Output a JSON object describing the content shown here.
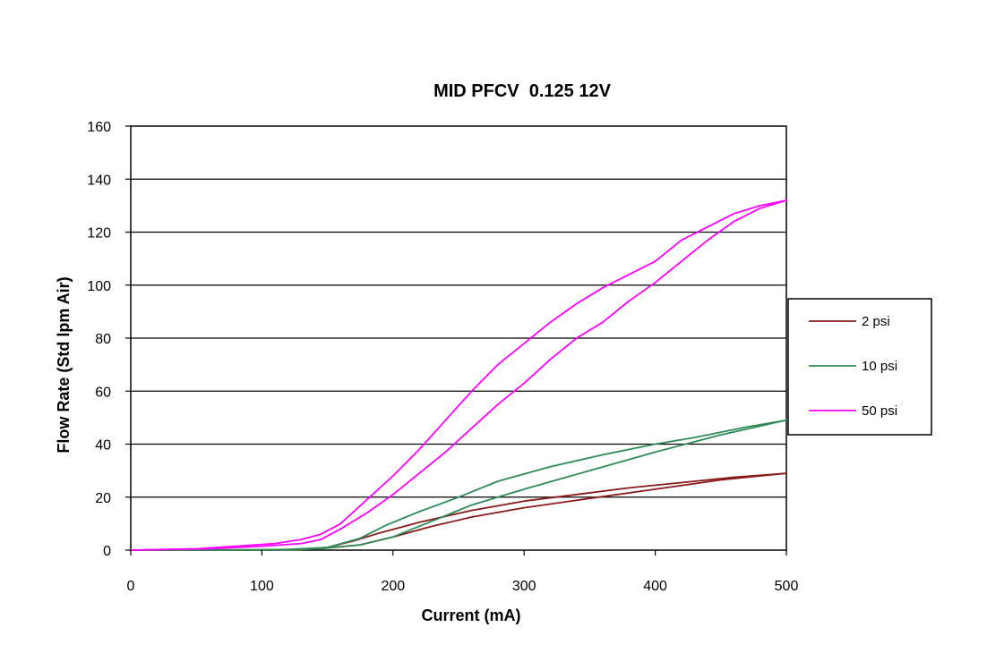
{
  "chart_data": {
    "type": "line",
    "title": "MID PFCV  0.125 12V",
    "xlabel": "Current (mA)",
    "ylabel": "Flow Rate (Std lpm Air)",
    "xlim": [
      0,
      500
    ],
    "ylim": [
      0,
      160
    ],
    "xticks": [
      0,
      100,
      200,
      300,
      400,
      500
    ],
    "yticks": [
      0,
      20,
      40,
      60,
      80,
      100,
      120,
      140,
      160
    ],
    "grid": "horizontal",
    "legend_position": "right",
    "series": [
      {
        "name": "2 psi",
        "color": "#8b1a1a",
        "up": [
          [
            0,
            0
          ],
          [
            100,
            0
          ],
          [
            130,
            0.2
          ],
          [
            150,
            0.8
          ],
          [
            175,
            2
          ],
          [
            200,
            5
          ],
          [
            230,
            9
          ],
          [
            260,
            12.5
          ],
          [
            300,
            16
          ],
          [
            350,
            19.5
          ],
          [
            400,
            23
          ],
          [
            450,
            26.5
          ],
          [
            500,
            29
          ]
        ],
        "down": [
          [
            500,
            29
          ],
          [
            460,
            27.5
          ],
          [
            420,
            25.5
          ],
          [
            380,
            23.5
          ],
          [
            340,
            21
          ],
          [
            300,
            18.5
          ],
          [
            260,
            15
          ],
          [
            220,
            10.5
          ],
          [
            190,
            6.5
          ],
          [
            170,
            3.5
          ],
          [
            150,
            1
          ],
          [
            130,
            0.3
          ],
          [
            100,
            0.1
          ],
          [
            0,
            0
          ]
        ]
      },
      {
        "name": "10 psi",
        "color": "#2e8b57",
        "up": [
          [
            0,
            0
          ],
          [
            100,
            0
          ],
          [
            130,
            0.2
          ],
          [
            150,
            0.8
          ],
          [
            175,
            2
          ],
          [
            200,
            5
          ],
          [
            230,
            11
          ],
          [
            260,
            17
          ],
          [
            300,
            23
          ],
          [
            350,
            30
          ],
          [
            400,
            37
          ],
          [
            450,
            43.5
          ],
          [
            500,
            49
          ]
        ],
        "down": [
          [
            500,
            49
          ],
          [
            470,
            46.5
          ],
          [
            430,
            42.5
          ],
          [
            400,
            40
          ],
          [
            360,
            36
          ],
          [
            320,
            31.5
          ],
          [
            280,
            26
          ],
          [
            250,
            20
          ],
          [
            220,
            14.5
          ],
          [
            195,
            9.5
          ],
          [
            175,
            4.5
          ],
          [
            150,
            1
          ],
          [
            120,
            0.3
          ],
          [
            100,
            0.1
          ],
          [
            0,
            0
          ]
        ]
      },
      {
        "name": "50 psi",
        "color": "#ff00ff",
        "up": [
          [
            0,
            0
          ],
          [
            60,
            0.5
          ],
          [
            100,
            1.5
          ],
          [
            130,
            2.5
          ],
          [
            145,
            4
          ],
          [
            160,
            8
          ],
          [
            180,
            14
          ],
          [
            200,
            21
          ],
          [
            220,
            29
          ],
          [
            240,
            37
          ],
          [
            260,
            46
          ],
          [
            280,
            55
          ],
          [
            300,
            63
          ],
          [
            320,
            72
          ],
          [
            340,
            80
          ],
          [
            360,
            86
          ],
          [
            380,
            94
          ],
          [
            400,
            101
          ],
          [
            420,
            109
          ],
          [
            440,
            117
          ],
          [
            460,
            124
          ],
          [
            480,
            129
          ],
          [
            500,
            132
          ]
        ],
        "down": [
          [
            500,
            132
          ],
          [
            480,
            130
          ],
          [
            460,
            127
          ],
          [
            440,
            122
          ],
          [
            420,
            117
          ],
          [
            400,
            109
          ],
          [
            380,
            104
          ],
          [
            360,
            99
          ],
          [
            340,
            93
          ],
          [
            320,
            86
          ],
          [
            300,
            78
          ],
          [
            280,
            70
          ],
          [
            260,
            60
          ],
          [
            240,
            49
          ],
          [
            220,
            38
          ],
          [
            200,
            28
          ],
          [
            180,
            19
          ],
          [
            160,
            10
          ],
          [
            145,
            6
          ],
          [
            130,
            4
          ],
          [
            110,
            2.5
          ],
          [
            80,
            1.5
          ],
          [
            50,
            0.5
          ],
          [
            0,
            0
          ]
        ]
      }
    ]
  }
}
